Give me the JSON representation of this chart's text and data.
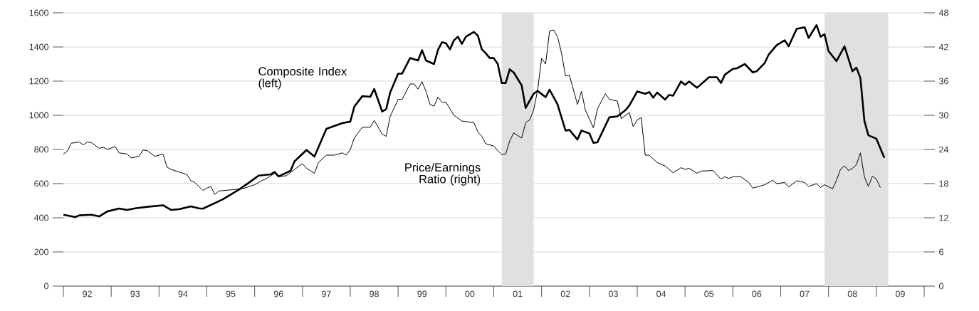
{
  "chart_data": {
    "type": "line",
    "xlim": [
      "1992",
      "2010"
    ],
    "xticks": [
      {
        "value": "1992",
        "label": null
      },
      {
        "value": "1992-07",
        "label": "92"
      },
      {
        "value": "1993",
        "label": null
      },
      {
        "value": "1993-07",
        "label": "93"
      },
      {
        "value": "1994",
        "label": null
      },
      {
        "value": "1994-07",
        "label": "94"
      },
      {
        "value": "1995",
        "label": null
      },
      {
        "value": "1995-07",
        "label": "95"
      },
      {
        "value": "1996",
        "label": null
      },
      {
        "value": "1996-07",
        "label": "96"
      },
      {
        "value": "1997",
        "label": null
      },
      {
        "value": "1997-07",
        "label": "97"
      },
      {
        "value": "1998",
        "label": null
      },
      {
        "value": "1998-07",
        "label": "98"
      },
      {
        "value": "1999",
        "label": null
      },
      {
        "value": "1999-07",
        "label": "99"
      },
      {
        "value": "2000",
        "label": null
      },
      {
        "value": "2000-07",
        "label": "00"
      },
      {
        "value": "2001",
        "label": null
      },
      {
        "value": "2001-07",
        "label": "01"
      },
      {
        "value": "2002",
        "label": null
      },
      {
        "value": "2002-07",
        "label": "02"
      },
      {
        "value": "2003",
        "label": null
      },
      {
        "value": "2003-07",
        "label": "03"
      },
      {
        "value": "2004",
        "label": null
      },
      {
        "value": "2004-07",
        "label": "04"
      },
      {
        "value": "2005",
        "label": null
      },
      {
        "value": "2005-07",
        "label": "05"
      },
      {
        "value": "2006",
        "label": null
      },
      {
        "value": "2006-07",
        "label": "06"
      },
      {
        "value": "2007",
        "label": null
      },
      {
        "value": "2007-07",
        "label": "07"
      },
      {
        "value": "2008",
        "label": null
      },
      {
        "value": "2008-07",
        "label": "08"
      },
      {
        "value": "2009",
        "label": null
      },
      {
        "value": "2009-07",
        "label": "09"
      },
      {
        "value": "2010",
        "label": null
      }
    ],
    "ylim": [
      0,
      1600
    ],
    "yticks": [
      0,
      200,
      400,
      600,
      800,
      1000,
      1200,
      1400,
      1600
    ],
    "y2lim": [
      0,
      48
    ],
    "y2ticks": [
      0,
      6,
      12,
      18,
      24,
      30,
      36,
      42,
      48
    ],
    "grid": "y",
    "bands": [
      {
        "axis": "x",
        "from": "2001-03",
        "to": "2001-11",
        "color": "#e0e0e0"
      },
      {
        "axis": "x",
        "from": "2007-12",
        "to": "2009-04",
        "color": "#e0e0e0"
      }
    ],
    "series": [
      {
        "name": "Composite Index (left)",
        "color": "#000000",
        "axis": "y",
        "x": [
          "1992-01",
          "1992-04",
          "1992-05",
          "1992-08",
          "1992-10",
          "1992-12",
          "1993-03",
          "1993-05",
          "1993-07",
          "1993-10",
          "1994-02",
          "1994-04",
          "1994-06",
          "1994-09",
          "1994-11",
          "1994-12",
          "1995-05",
          "1995-09",
          "1995-12",
          "1996-02",
          "1996-05",
          "1996-06",
          "1996-07",
          "1996-10",
          "1996-11",
          "1997-02",
          "1997-04",
          "1997-07",
          "1997-10",
          "1997-11",
          "1998-01",
          "1998-02",
          "1998-04",
          "1998-06",
          "1998-07",
          "1998-09",
          "1998-10",
          "1998-11",
          "1999-01",
          "1999-02",
          "1999-04",
          "1999-06",
          "1999-07",
          "1999-08",
          "1999-10",
          "1999-11",
          "1999-12",
          "2000-01",
          "2000-02",
          "2000-03",
          "2000-04",
          "2000-05",
          "2000-06",
          "2000-08",
          "2000-09",
          "2000-10",
          "2000-11",
          "2000-12",
          "2001-01",
          "2001-02",
          "2001-03",
          "2001-04",
          "2001-05",
          "2001-06",
          "2001-08",
          "2001-09",
          "2001-11",
          "2001-12",
          "2002-02",
          "2002-03",
          "2002-05",
          "2002-07",
          "2002-08",
          "2002-10",
          "2002-11",
          "2003-01",
          "2003-02",
          "2003-03",
          "2003-06",
          "2003-08",
          "2003-10",
          "2003-11",
          "2004-01",
          "2004-03",
          "2004-04",
          "2004-05",
          "2004-06",
          "2004-08",
          "2004-09",
          "2004-10",
          "2004-12",
          "2005-01",
          "2005-02",
          "2005-04",
          "2005-07",
          "2005-09",
          "2005-10",
          "2005-11",
          "2006-01",
          "2006-02",
          "2006-04",
          "2006-06",
          "2006-07",
          "2006-09",
          "2006-10",
          "2006-12",
          "2007-02",
          "2007-03",
          "2007-05",
          "2007-07",
          "2007-08",
          "2007-10",
          "2007-11",
          "2007-12",
          "2008-01",
          "2008-03",
          "2008-05",
          "2008-07",
          "2008-08",
          "2008-09",
          "2008-10",
          "2008-11",
          "2009-01",
          "2009-03"
        ],
        "values": [
          418,
          404,
          414,
          418,
          408,
          437,
          454,
          446,
          455,
          464,
          473,
          446,
          450,
          467,
          455,
          453,
          508,
          564,
          613,
          647,
          654,
          668,
          642,
          675,
          730,
          797,
          758,
          921,
          946,
          954,
          963,
          1050,
          1112,
          1108,
          1154,
          1022,
          1036,
          1133,
          1244,
          1244,
          1335,
          1321,
          1381,
          1321,
          1300,
          1383,
          1428,
          1422,
          1386,
          1439,
          1460,
          1418,
          1460,
          1488,
          1467,
          1386,
          1363,
          1335,
          1335,
          1300,
          1189,
          1189,
          1269,
          1251,
          1175,
          1043,
          1126,
          1143,
          1106,
          1150,
          1064,
          911,
          914,
          858,
          911,
          894,
          839,
          842,
          988,
          994,
          1029,
          1057,
          1140,
          1126,
          1136,
          1103,
          1133,
          1092,
          1119,
          1115,
          1198,
          1178,
          1198,
          1161,
          1223,
          1223,
          1189,
          1238,
          1272,
          1275,
          1300,
          1251,
          1258,
          1307,
          1356,
          1411,
          1439,
          1404,
          1506,
          1515,
          1453,
          1528,
          1460,
          1474,
          1376,
          1317,
          1404,
          1258,
          1279,
          1217,
          967,
          883,
          863,
          751
        ]
      },
      {
        "name": "Price/Earnings Ratio (right)",
        "color": "#000000",
        "axis": "y2",
        "x": [
          "1992-01",
          "1992-02",
          "1992-03",
          "1992-05",
          "1992-06",
          "1992-07",
          "1992-08",
          "1992-10",
          "1992-11",
          "1992-12",
          "1993-02",
          "1993-03",
          "1993-05",
          "1993-06",
          "1993-08",
          "1993-09",
          "1993-10",
          "1993-12",
          "1994-02",
          "1994-03",
          "1994-04",
          "1994-08",
          "1994-09",
          "1994-10",
          "1994-12",
          "1995-01",
          "1995-02",
          "1995-03",
          "1995-04",
          "1995-07",
          "1995-10",
          "1996-01",
          "1996-03",
          "1996-04",
          "1996-06",
          "1996-07",
          "1996-09",
          "1996-11",
          "1997-01",
          "1997-02",
          "1997-04",
          "1997-05",
          "1997-07",
          "1997-09",
          "1997-11",
          "1997-12",
          "1998-01",
          "1998-02",
          "1998-04",
          "1998-06",
          "1998-07",
          "1998-09",
          "1998-10",
          "1998-11",
          "1999-01",
          "1999-02",
          "1999-04",
          "1999-05",
          "1999-06",
          "1999-07",
          "1999-08",
          "1999-09",
          "1999-10",
          "1999-11",
          "1999-12",
          "2000-01",
          "2000-03",
          "2000-05",
          "2000-06",
          "2000-08",
          "2000-09",
          "2000-10",
          "2000-11",
          "2001-01",
          "2001-02",
          "2001-03",
          "2001-04",
          "2001-05",
          "2001-06",
          "2001-08",
          "2001-09",
          "2001-10",
          "2001-11",
          "2001-12",
          "2002-01",
          "2002-02",
          "2002-03",
          "2002-04",
          "2002-05",
          "2002-06",
          "2002-07",
          "2002-08",
          "2002-10",
          "2002-11",
          "2002-12",
          "2003-02",
          "2003-03",
          "2003-05",
          "2003-06",
          "2003-08",
          "2003-09",
          "2003-11",
          "2003-12",
          "2004-01",
          "2004-02",
          "2004-03",
          "2004-04",
          "2004-06",
          "2004-08",
          "2004-10",
          "2004-12",
          "2005-01",
          "2005-02",
          "2005-04",
          "2005-05",
          "2005-08",
          "2005-10",
          "2005-11",
          "2005-12",
          "2006-01",
          "2006-03",
          "2006-05",
          "2006-06",
          "2006-08",
          "2006-09",
          "2006-11",
          "2006-12",
          "2007-02",
          "2007-03",
          "2007-05",
          "2007-07",
          "2007-08",
          "2007-10",
          "2007-11",
          "2007-12",
          "2008-02",
          "2008-03",
          "2008-04",
          "2008-05",
          "2008-06",
          "2008-07",
          "2008-08",
          "2008-09",
          "2008-10",
          "2008-11",
          "2008-12",
          "2009-01",
          "2009-02"
        ],
        "values": [
          23.2,
          23.7,
          25.1,
          25.3,
          24.8,
          25.3,
          25.2,
          24.2,
          24.4,
          24.0,
          24.5,
          23.4,
          23.2,
          22.5,
          22.8,
          23.9,
          23.8,
          22.8,
          23.2,
          20.9,
          20.5,
          19.6,
          18.5,
          18.2,
          16.8,
          17.2,
          17.5,
          16.1,
          16.7,
          16.9,
          17.1,
          17.8,
          18.6,
          18.9,
          19.8,
          19.2,
          19.4,
          20.5,
          21.5,
          20.7,
          19.8,
          21.7,
          23.0,
          23.0,
          23.4,
          23.0,
          24.0,
          26.0,
          27.9,
          27.9,
          29.1,
          26.7,
          26.3,
          29.8,
          32.8,
          32.8,
          35.5,
          35.5,
          34.6,
          35.9,
          34.2,
          31.9,
          31.6,
          33.2,
          32.3,
          32.3,
          30.0,
          29.0,
          28.9,
          28.7,
          27.1,
          26.3,
          25.0,
          24.6,
          23.8,
          23.1,
          23.2,
          25.5,
          26.9,
          26.0,
          28.7,
          29.2,
          30.9,
          34.4,
          40.0,
          39.0,
          44.8,
          45.0,
          43.8,
          40.9,
          36.9,
          37.0,
          31.9,
          34.2,
          30.9,
          27.8,
          31.1,
          33.8,
          32.8,
          32.5,
          29.4,
          30.5,
          28.0,
          29.2,
          29.6,
          23.0,
          23.0,
          21.7,
          21.1,
          19.9,
          20.8,
          20.5,
          20.7,
          19.8,
          20.2,
          20.3,
          18.8,
          19.2,
          18.9,
          19.2,
          19.2,
          18.2,
          17.2,
          17.6,
          17.8,
          18.6,
          18.0,
          18.2,
          17.4,
          18.5,
          18.2,
          17.5,
          18.0,
          17.3,
          17.8,
          17.1,
          18.6,
          20.5,
          21.1,
          20.3,
          20.7,
          21.3,
          23.4,
          19.2,
          17.5,
          19.3,
          18.8,
          17.3
        ]
      }
    ]
  }
}
